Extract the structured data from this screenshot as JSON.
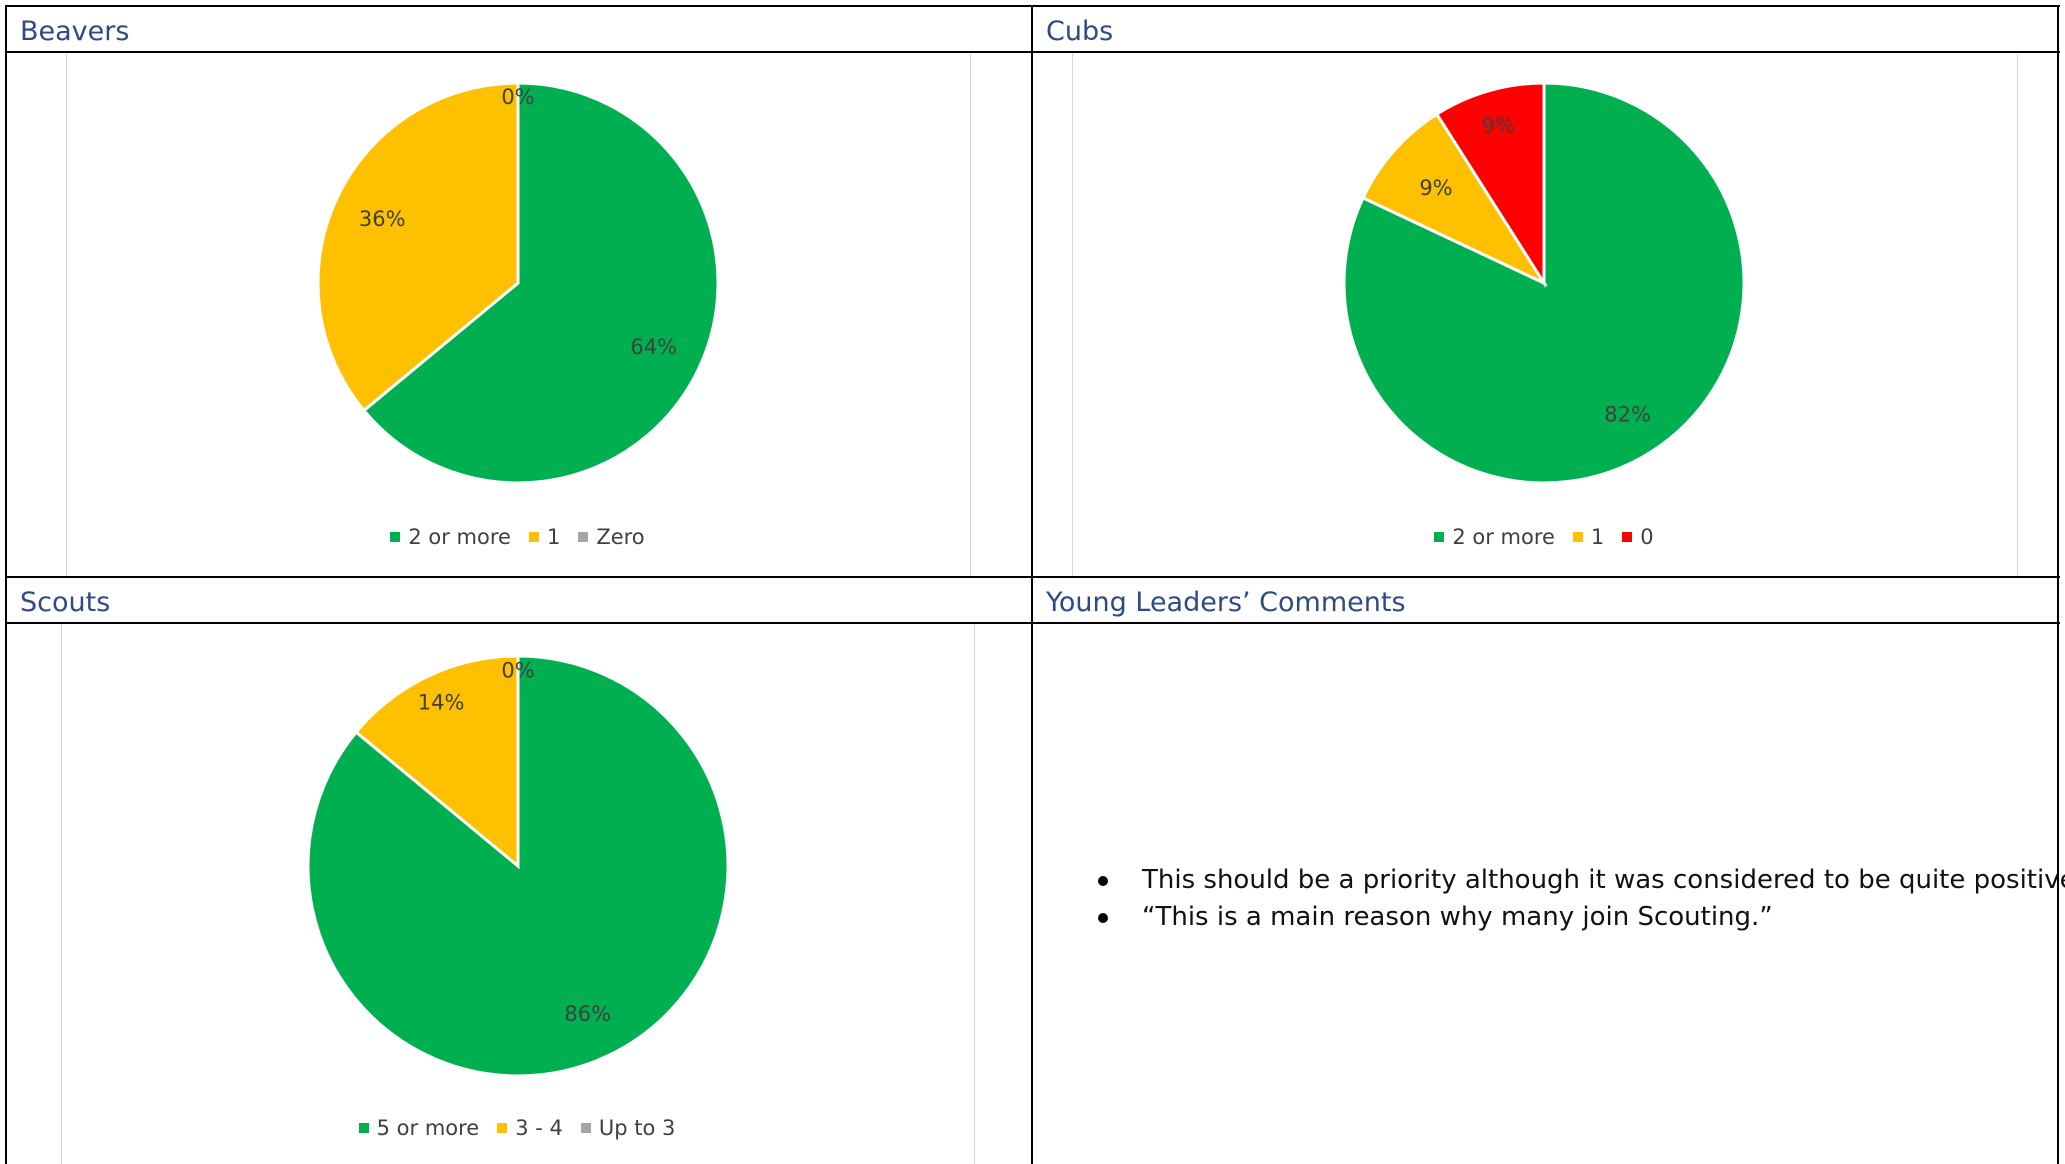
{
  "cells": {
    "beavers": {
      "title": "Beavers"
    },
    "cubs": {
      "title": "Cubs"
    },
    "scouts": {
      "title": "Scouts"
    },
    "comments": {
      "title": "Young Leaders’ Comments"
    }
  },
  "chart_data": [
    {
      "type": "pie",
      "title": "",
      "series": [
        {
          "name": "2 or more",
          "value": 64,
          "label": "64%",
          "color": "#00b050"
        },
        {
          "name": "1",
          "value": 36,
          "label": "36%",
          "color": "#ffc000"
        },
        {
          "name": "Zero",
          "value": 0,
          "label": "0%",
          "color": "#a5a5a5"
        }
      ],
      "legend": "bottom"
    },
    {
      "type": "pie",
      "title": "",
      "series": [
        {
          "name": "2 or more",
          "value": 82,
          "label": "82%",
          "color": "#00b050"
        },
        {
          "name": "1",
          "value": 9,
          "label": "9%",
          "color": "#ffc000"
        },
        {
          "name": "0",
          "value": 9,
          "label": "9%",
          "color": "#ff0000"
        }
      ],
      "legend": "bottom"
    },
    {
      "type": "pie",
      "title": "",
      "series": [
        {
          "name": "5 or more",
          "value": 86,
          "label": "86%",
          "color": "#00b050"
        },
        {
          "name": "3 - 4",
          "value": 14,
          "label": "14%",
          "color": "#ffc000"
        },
        {
          "name": "Up to 3",
          "value": 0,
          "label": "0%",
          "color": "#a5a5a5"
        }
      ],
      "legend": "bottom"
    }
  ],
  "comments": [
    "This should be a priority although it was considered to be quite positive",
    "“This is a main reason why many join Scouting.”"
  ]
}
